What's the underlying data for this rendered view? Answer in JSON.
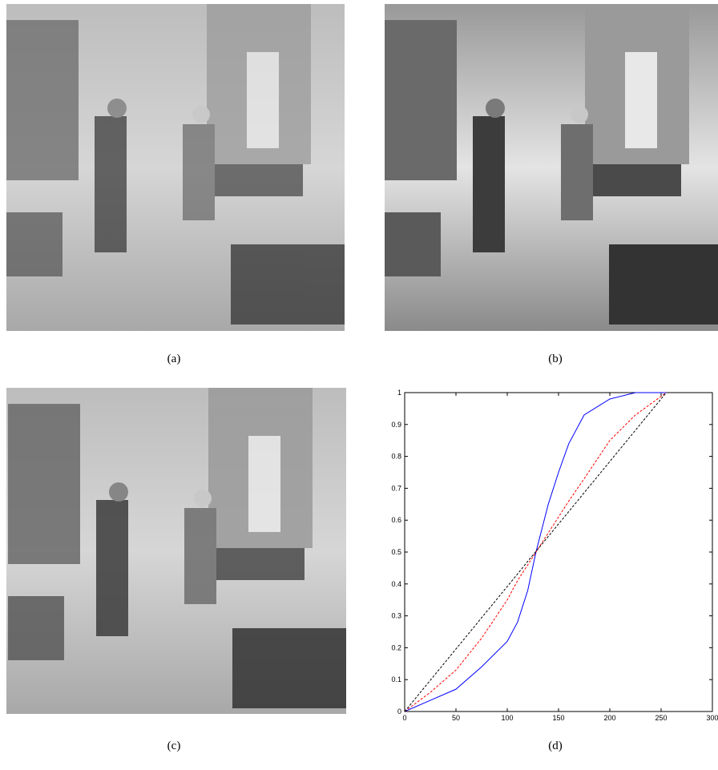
{
  "captions": [
    "(a)",
    "(b)",
    "(c)",
    "(d)"
  ],
  "chart_data": {
    "type": "line",
    "x": [
      0,
      25,
      50,
      75,
      100,
      110,
      120,
      128,
      140,
      150,
      160,
      175,
      200,
      225,
      255
    ],
    "series": [
      {
        "color": "#0000ff",
        "dashed": false,
        "values": [
          0,
          0.035,
          0.07,
          0.14,
          0.22,
          0.28,
          0.38,
          0.5,
          0.65,
          0.75,
          0.84,
          0.93,
          0.98,
          1,
          1
        ]
      },
      {
        "color": "#ff0000",
        "dashed": true,
        "values": [
          0,
          0.06,
          0.13,
          0.23,
          0.35,
          0.41,
          0.46,
          0.5,
          0.56,
          0.61,
          0.66,
          0.73,
          0.85,
          0.93,
          1
        ]
      },
      {
        "color": "#000000",
        "dashed": true,
        "values": [
          0,
          0.098,
          0.196,
          0.294,
          0.392,
          0.431,
          0.471,
          0.502,
          0.549,
          0.588,
          0.627,
          0.686,
          0.784,
          0.882,
          1
        ]
      }
    ],
    "xlim": [
      0,
      300
    ],
    "ylim": [
      0,
      1
    ],
    "xticks": [
      0,
      50,
      100,
      150,
      200,
      250,
      300
    ],
    "yticks": [
      0,
      0.1,
      0.2,
      0.3,
      0.4,
      0.5,
      0.6,
      0.7,
      0.8,
      0.9,
      1
    ]
  }
}
